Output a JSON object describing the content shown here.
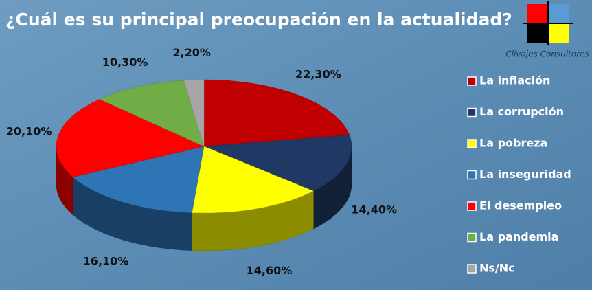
{
  "chart_data": {
    "type": "pie3d",
    "title": "¿Cuál es su principal preocupación en la actualidad?",
    "source": "Clivajes Consultores",
    "categories": [
      "La inflación",
      "La corrupción",
      "La pobreza",
      "La inseguridad",
      "El desempleo",
      "La pandemia",
      "Ns/Nc"
    ],
    "values": [
      22.3,
      14.4,
      14.6,
      16.1,
      20.1,
      10.3,
      2.2
    ],
    "value_labels": [
      "22,30%",
      "14,40%",
      "14,60%",
      "16,10%",
      "20,10%",
      "10,30%",
      "2,20%"
    ],
    "colors": [
      "#c00000",
      "#1f3864",
      "#ffff00",
      "#2e75b6",
      "#ff0000",
      "#70ad47",
      "#a6a6a6"
    ],
    "legend": "right"
  }
}
